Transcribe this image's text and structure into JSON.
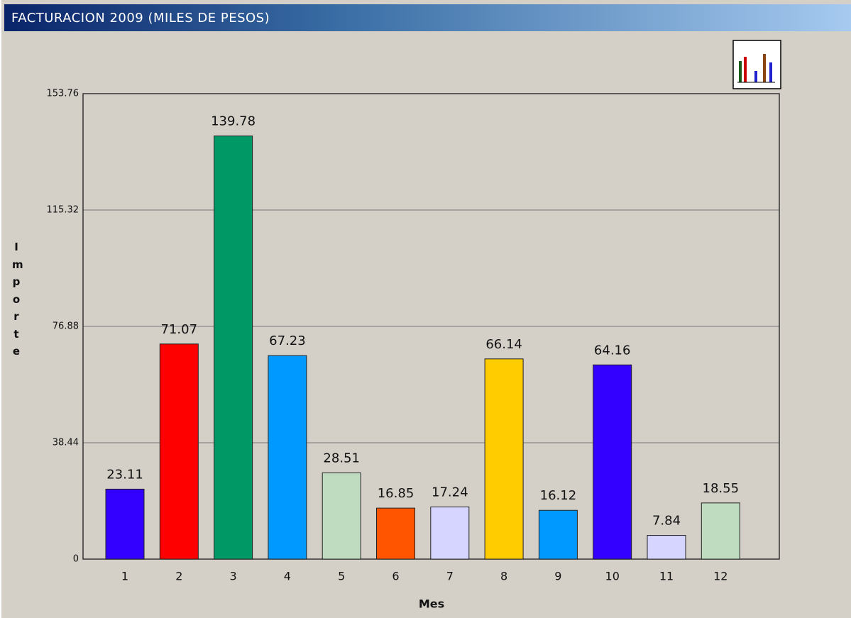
{
  "title": "FACTURACION 2009 (MILES DE PESOS)",
  "chart_data": {
    "type": "bar",
    "x_label": "Mes",
    "y_label": "Importe",
    "categories": [
      "1",
      "2",
      "3",
      "4",
      "5",
      "6",
      "7",
      "8",
      "9",
      "10",
      "11",
      "12"
    ],
    "values": [
      23.11,
      71.07,
      139.78,
      67.23,
      28.51,
      16.85,
      17.24,
      66.14,
      16.12,
      64.16,
      7.84,
      18.55
    ],
    "colors": [
      "#3300ff",
      "#ff0000",
      "#009966",
      "#0099ff",
      "#c0dcc0",
      "#ff5500",
      "#d5d5ff",
      "#ffcc00",
      "#0099ff",
      "#3300ff",
      "#d5d5ff",
      "#c0dcc0"
    ],
    "ylim": [
      0,
      153.76
    ],
    "yticks": [
      0,
      38.44,
      76.88,
      115.32,
      153.76
    ],
    "grid": true
  }
}
